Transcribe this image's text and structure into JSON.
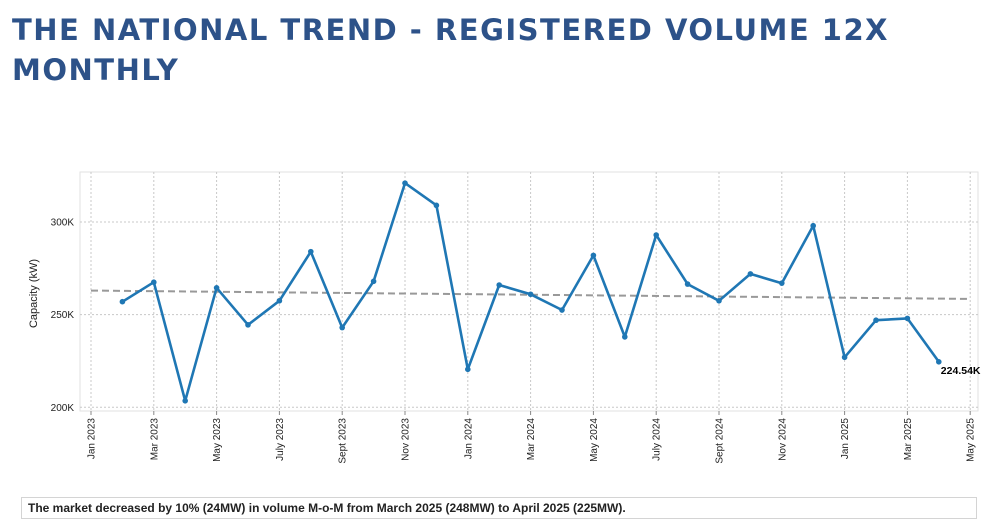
{
  "page": {
    "title": "THE NATIONAL TREND - REGISTERED VOLUME 12X MONTHLY",
    "summary": "The market decreased by 10% (24MW) in volume M-o-M from March 2025 (248MW) to April 2025 (225MW)."
  },
  "colors": {
    "title": "#2d5289",
    "line": "#1f77b4",
    "trend": "#999999",
    "grid": "#c8c8c8"
  },
  "chart_data": {
    "type": "line",
    "title": "",
    "xlabel": "",
    "ylabel": "Capacity (kW)",
    "xlim": [
      "2023-01",
      "2025-05"
    ],
    "ylim": [
      198000,
      327000
    ],
    "x_ticks": [
      "Jan 2023",
      "Mar 2023",
      "May 2023",
      "July 2023",
      "Sept 2023",
      "Nov 2023",
      "Jan 2024",
      "Mar 2024",
      "May 2024",
      "July 2024",
      "Sept 2024",
      "Nov 2024",
      "Jan 2025",
      "Mar 2025",
      "May 2025"
    ],
    "y_ticks": [
      {
        "value": 200000,
        "label": "200K"
      },
      {
        "value": 250000,
        "label": "250K"
      },
      {
        "value": 300000,
        "label": "300K"
      }
    ],
    "grid": true,
    "series": [
      {
        "x": [
          "2023-02",
          "2023-03",
          "2023-04",
          "2023-05",
          "2023-06",
          "2023-07",
          "2023-08",
          "2023-09",
          "2023-10",
          "2023-11",
          "2023-12",
          "2024-01",
          "2024-02",
          "2024-03",
          "2024-04",
          "2024-05",
          "2024-06",
          "2024-07",
          "2024-08",
          "2024-09",
          "2024-10",
          "2024-11",
          "2024-12",
          "2025-01",
          "2025-02",
          "2025-03",
          "2025-04"
        ],
        "values": [
          257000,
          267500,
          203500,
          264500,
          244500,
          257500,
          284000,
          243000,
          268000,
          321000,
          309000,
          220500,
          266000,
          261000,
          252500,
          282000,
          238000,
          293000,
          266500,
          257500,
          272000,
          267000,
          298000,
          227000,
          247000,
          248000,
          224540
        ]
      }
    ],
    "trendline": {
      "start": [
        "2023-01",
        263000
      ],
      "end": [
        "2025-05",
        258500
      ],
      "style": "dashed"
    },
    "annotations": [
      {
        "x": "2025-04",
        "label": "224.54K"
      }
    ]
  }
}
